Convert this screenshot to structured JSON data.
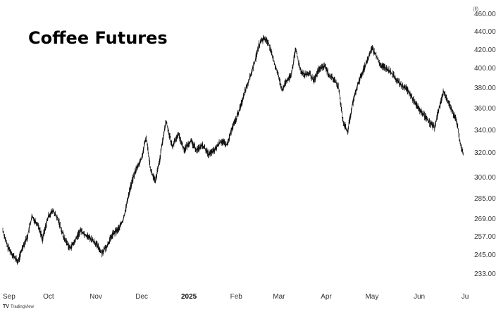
{
  "chart_data": {
    "type": "line",
    "title": "Coffee Futures",
    "y_axis_unit": "(ll)",
    "y_axis_side": "right",
    "y_ticks": [
      233,
      245,
      257,
      269,
      285,
      300,
      320,
      340,
      360,
      380,
      400,
      420,
      440,
      460
    ],
    "y_tick_labels": [
      "233.00",
      "245.00",
      "257.00",
      "269.00",
      "285.00",
      "300.00",
      "320.00",
      "340.00",
      "360.00",
      "380.00",
      "400.00",
      "420.00",
      "440.00",
      "460.00"
    ],
    "x_tick_labels": [
      {
        "label": "Sep",
        "day": 0,
        "bold": false
      },
      {
        "label": "Oct",
        "day": 30,
        "bold": false
      },
      {
        "label": "Nov",
        "day": 61,
        "bold": false
      },
      {
        "label": "Dec",
        "day": 91,
        "bold": false
      },
      {
        "label": "2025",
        "day": 122,
        "bold": true
      },
      {
        "label": "Feb",
        "day": 153,
        "bold": false
      },
      {
        "label": "Mar",
        "day": 181,
        "bold": false
      },
      {
        "label": "Apr",
        "day": 212,
        "bold": false
      },
      {
        "label": "May",
        "day": 242,
        "bold": false
      },
      {
        "label": "Jun",
        "day": 273,
        "bold": false
      },
      {
        "label": "Ju",
        "day": 303,
        "bold": false
      }
    ],
    "xlim": [
      "2024-09-01",
      "2025-07-01"
    ],
    "grid": false,
    "series": [
      {
        "values_by_date": [
          [
            "2024-09-01",
            261
          ],
          [
            "2024-09-04",
            250
          ],
          [
            "2024-09-08",
            244
          ],
          [
            "2024-09-11",
            240
          ],
          [
            "2024-09-14",
            250
          ],
          [
            "2024-09-17",
            256
          ],
          [
            "2024-09-20",
            270
          ],
          [
            "2024-09-24",
            265
          ],
          [
            "2024-09-27",
            255
          ],
          [
            "2024-10-01",
            271
          ],
          [
            "2024-10-04",
            275
          ],
          [
            "2024-10-08",
            266
          ],
          [
            "2024-10-11",
            256
          ],
          [
            "2024-10-15",
            249
          ],
          [
            "2024-10-18",
            253
          ],
          [
            "2024-10-22",
            261
          ],
          [
            "2024-10-25",
            258
          ],
          [
            "2024-10-29",
            255
          ],
          [
            "2024-11-01",
            252
          ],
          [
            "2024-11-05",
            246
          ],
          [
            "2024-11-08",
            250
          ],
          [
            "2024-11-12",
            258
          ],
          [
            "2024-11-16",
            262
          ],
          [
            "2024-11-19",
            268
          ],
          [
            "2024-11-23",
            290
          ],
          [
            "2024-11-27",
            305
          ],
          [
            "2024-12-01",
            315
          ],
          [
            "2024-12-04",
            333
          ],
          [
            "2024-12-07",
            305
          ],
          [
            "2024-12-10",
            296
          ],
          [
            "2024-12-13",
            315
          ],
          [
            "2024-12-17",
            348
          ],
          [
            "2024-12-21",
            325
          ],
          [
            "2024-12-25",
            336
          ],
          [
            "2024-12-29",
            322
          ],
          [
            "2025-01-02",
            330
          ],
          [
            "2025-01-06",
            322
          ],
          [
            "2025-01-10",
            326
          ],
          [
            "2025-01-14",
            318
          ],
          [
            "2025-01-18",
            322
          ],
          [
            "2025-01-22",
            330
          ],
          [
            "2025-01-26",
            326
          ],
          [
            "2025-01-29",
            340
          ],
          [
            "2025-02-01",
            350
          ],
          [
            "2025-02-04",
            362
          ],
          [
            "2025-02-07",
            378
          ],
          [
            "2025-02-10",
            390
          ],
          [
            "2025-02-13",
            405
          ],
          [
            "2025-02-16",
            425
          ],
          [
            "2025-02-19",
            432
          ],
          [
            "2025-02-22",
            428
          ],
          [
            "2025-02-25",
            410
          ],
          [
            "2025-02-28",
            395
          ],
          [
            "2025-03-03",
            378
          ],
          [
            "2025-03-06",
            386
          ],
          [
            "2025-03-09",
            392
          ],
          [
            "2025-03-12",
            420
          ],
          [
            "2025-03-15",
            398
          ],
          [
            "2025-03-18",
            392
          ],
          [
            "2025-03-21",
            394
          ],
          [
            "2025-03-24",
            386
          ],
          [
            "2025-03-27",
            398
          ],
          [
            "2025-03-31",
            402
          ],
          [
            "2025-04-03",
            392
          ],
          [
            "2025-04-06",
            388
          ],
          [
            "2025-04-09",
            380
          ],
          [
            "2025-04-12",
            348
          ],
          [
            "2025-04-15",
            338
          ],
          [
            "2025-04-18",
            362
          ],
          [
            "2025-04-21",
            380
          ],
          [
            "2025-04-24",
            392
          ],
          [
            "2025-04-28",
            408
          ],
          [
            "2025-05-01",
            422
          ],
          [
            "2025-05-04",
            412
          ],
          [
            "2025-05-07",
            402
          ],
          [
            "2025-05-10",
            400
          ],
          [
            "2025-05-13",
            396
          ],
          [
            "2025-05-16",
            390
          ],
          [
            "2025-05-20",
            382
          ],
          [
            "2025-05-24",
            378
          ],
          [
            "2025-05-28",
            368
          ],
          [
            "2025-06-01",
            358
          ],
          [
            "2025-06-05",
            352
          ],
          [
            "2025-06-08",
            346
          ],
          [
            "2025-06-11",
            342
          ],
          [
            "2025-06-14",
            360
          ],
          [
            "2025-06-17",
            376
          ],
          [
            "2025-06-20",
            366
          ],
          [
            "2025-06-23",
            356
          ],
          [
            "2025-06-26",
            345
          ],
          [
            "2025-06-28",
            326
          ],
          [
            "2025-06-30",
            318
          ]
        ]
      }
    ]
  },
  "watermark": {
    "text": "TradingView",
    "logo": "TV"
  }
}
